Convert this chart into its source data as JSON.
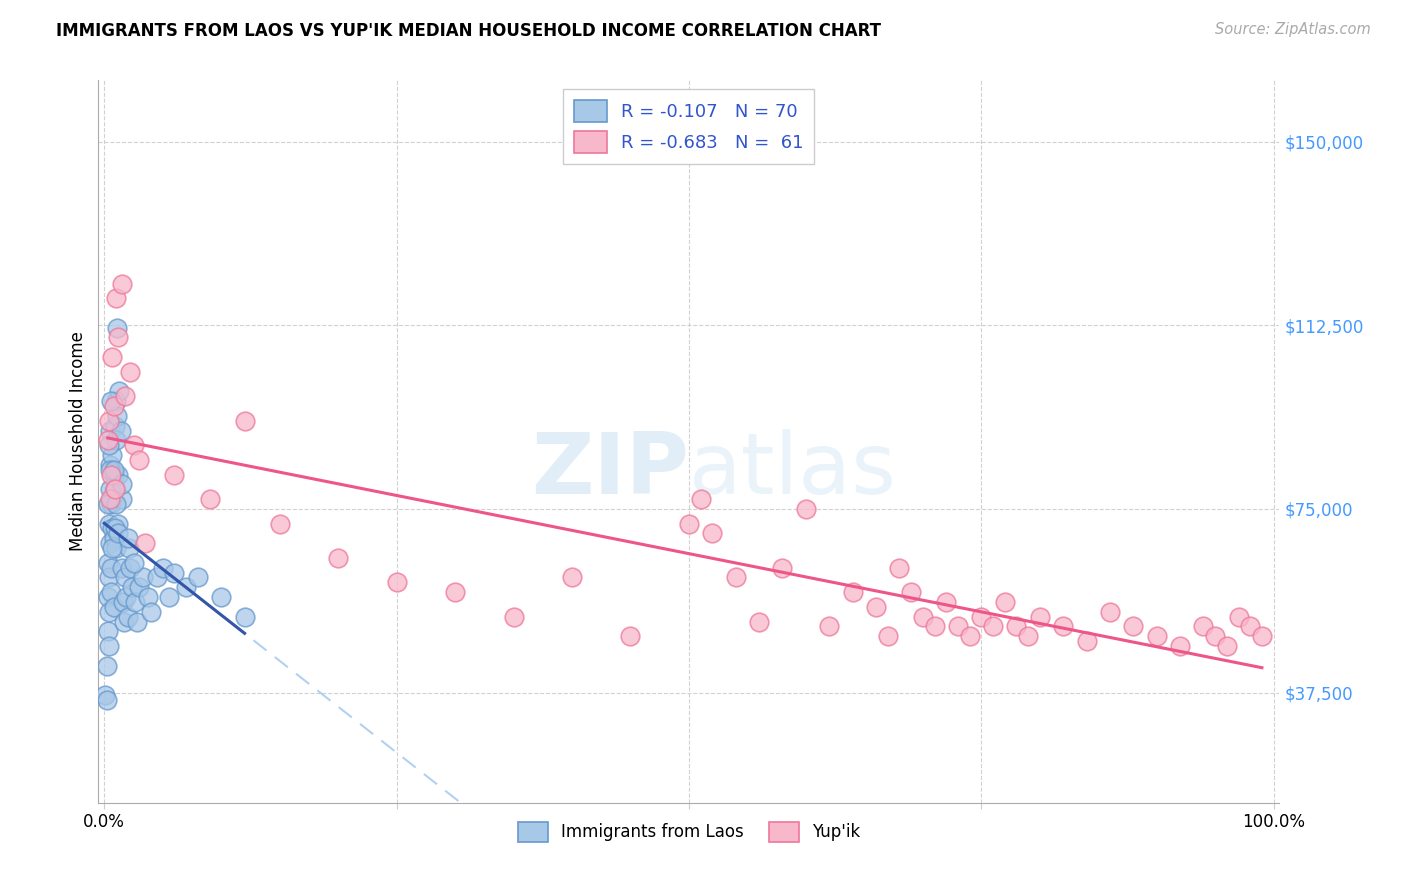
{
  "title": "IMMIGRANTS FROM LAOS VS YUP'IK MEDIAN HOUSEHOLD INCOME CORRELATION CHART",
  "source": "Source: ZipAtlas.com",
  "ylabel": "Median Household Income",
  "xlim": [
    -0.005,
    1.005
  ],
  "ylim": [
    15000,
    162500
  ],
  "ytick_vals": [
    37500,
    75000,
    112500,
    150000
  ],
  "ytick_labels": [
    "$37,500",
    "$75,000",
    "$112,500",
    "$150,000"
  ],
  "ytick_color": "#4499ff",
  "watermark_zip": "ZIP",
  "watermark_atlas": "atlas",
  "series1_name": "Immigrants from Laos",
  "series1_R": "-0.107",
  "series1_N": "70",
  "series1_face": "#a8c8e8",
  "series1_edge": "#6699cc",
  "series2_name": "Yup'ik",
  "series2_R": "-0.683",
  "series2_N": "61",
  "series2_face": "#f8b8cc",
  "series2_edge": "#ee7799",
  "blue_line_color": "#3355aa",
  "pink_line_color": "#ee5588",
  "dashed_line_color": "#aaccee",
  "blue_x": [
    0.001,
    0.002,
    0.002,
    0.003,
    0.003,
    0.003,
    0.004,
    0.004,
    0.004,
    0.004,
    0.005,
    0.005,
    0.005,
    0.005,
    0.006,
    0.006,
    0.006,
    0.007,
    0.007,
    0.007,
    0.008,
    0.008,
    0.008,
    0.009,
    0.009,
    0.01,
    0.01,
    0.01,
    0.011,
    0.011,
    0.012,
    0.012,
    0.013,
    0.014,
    0.015,
    0.015,
    0.016,
    0.017,
    0.018,
    0.019,
    0.02,
    0.021,
    0.022,
    0.024,
    0.026,
    0.028,
    0.03,
    0.033,
    0.037,
    0.04,
    0.045,
    0.05,
    0.055,
    0.06,
    0.07,
    0.08,
    0.1,
    0.12,
    0.003,
    0.004,
    0.005,
    0.006,
    0.007,
    0.008,
    0.009,
    0.01,
    0.012,
    0.015,
    0.02,
    0.025
  ],
  "blue_y": [
    37000,
    43000,
    36000,
    57000,
    50000,
    64000,
    47000,
    54000,
    61000,
    72000,
    79000,
    84000,
    68000,
    91000,
    76000,
    63000,
    58000,
    77000,
    71000,
    86000,
    82000,
    69000,
    55000,
    92000,
    79000,
    97000,
    89000,
    67000,
    112000,
    94000,
    82000,
    72000,
    99000,
    91000,
    77000,
    63000,
    56000,
    52000,
    61000,
    57000,
    53000,
    67000,
    63000,
    59000,
    56000,
    52000,
    59000,
    61000,
    57000,
    54000,
    61000,
    63000,
    57000,
    62000,
    59000,
    61000,
    57000,
    53000,
    76000,
    88000,
    83000,
    97000,
    67000,
    83000,
    71000,
    76000,
    70000,
    80000,
    69000,
    64000
  ],
  "pink_x": [
    0.003,
    0.004,
    0.005,
    0.006,
    0.007,
    0.008,
    0.009,
    0.01,
    0.012,
    0.015,
    0.018,
    0.022,
    0.025,
    0.03,
    0.035,
    0.06,
    0.09,
    0.12,
    0.15,
    0.2,
    0.25,
    0.3,
    0.35,
    0.4,
    0.45,
    0.5,
    0.51,
    0.52,
    0.54,
    0.56,
    0.58,
    0.6,
    0.62,
    0.64,
    0.66,
    0.67,
    0.68,
    0.69,
    0.7,
    0.71,
    0.72,
    0.73,
    0.74,
    0.75,
    0.76,
    0.77,
    0.78,
    0.79,
    0.8,
    0.82,
    0.84,
    0.86,
    0.88,
    0.9,
    0.92,
    0.94,
    0.95,
    0.96,
    0.97,
    0.98,
    0.99
  ],
  "pink_y": [
    89000,
    93000,
    77000,
    82000,
    106000,
    96000,
    79000,
    118000,
    110000,
    121000,
    98000,
    103000,
    88000,
    85000,
    68000,
    82000,
    77000,
    93000,
    72000,
    65000,
    60000,
    58000,
    53000,
    61000,
    49000,
    72000,
    77000,
    70000,
    61000,
    52000,
    63000,
    75000,
    51000,
    58000,
    55000,
    49000,
    63000,
    58000,
    53000,
    51000,
    56000,
    51000,
    49000,
    53000,
    51000,
    56000,
    51000,
    49000,
    53000,
    51000,
    48000,
    54000,
    51000,
    49000,
    47000,
    51000,
    49000,
    47000,
    53000,
    51000,
    49000
  ]
}
